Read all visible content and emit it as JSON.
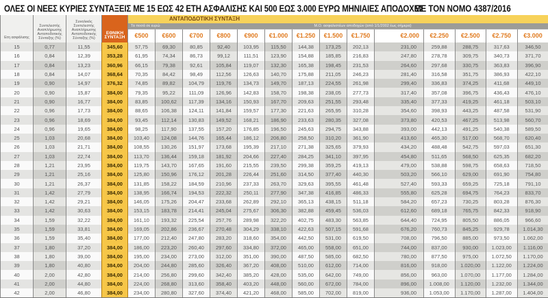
{
  "title": "ΟΛΕΣ ΟΙ ΝΕΕΣ ΚΥΡΙΕΣ ΣΥΝΤΑΞΕΙΣ ΜΕ 15 ΕΩΣ 42 ΕΤΗ ΑΣΦΑΛΙΣΗΣ ΚΑΙ 500 ΕΩΣ 3.000 ΕΥΡΩ ΜΗΝΙΑΙΕΣ ΑΠΟΔΟΧΕΣ",
  "law": "ΜΕ ΤΟΝ ΝΟΜΟ 4387/2016",
  "headers": {
    "years": "Ετη ασφάλισης",
    "coef": "Συντελεστής Αναπλήρωσης Ανταποδοτικής Σύνταξης (%)",
    "total_coef": "Συνολικός Συντελεστής Αναπλήρωσης Ανταποδοτικής Σύνταξης (%)",
    "national": "ΕΘΝΙΚΗ ΣΥΝΤΑΞΗ",
    "contributory": "ΑΝΤΑΠΟΔΟΤΙΚΗ ΣΥΝΤΑΞΗ",
    "amounts_note": "Τα ποσά σε ευρώ",
    "salary_note": "Μ.Ο. ασφαλιστέων αποδοχών (από 1/1/2002 έως σήμερα)",
    "salaries": [
      "€500",
      "€600",
      "€700",
      "€800",
      "€900",
      "€1.000",
      "€1.250",
      "€1.500",
      "€1.750",
      "€2.000",
      "€2.250",
      "€2.500",
      "€2.750",
      "€3.000"
    ]
  },
  "rows": [
    [
      "15",
      "0,77",
      "11,55",
      "345,60",
      "57,75",
      "69,30",
      "80,85",
      "92,40",
      "103,95",
      "115,50",
      "144,38",
      "173,25",
      "202,13",
      "231,00",
      "259,88",
      "288,75",
      "317,63",
      "346,50"
    ],
    [
      "16",
      "0,84",
      "12,39",
      "353,28",
      "61,95",
      "74,34",
      "86,73",
      "99,12",
      "111,51",
      "123,90",
      "154,88",
      "185,85",
      "216,83",
      "247,80",
      "278,78",
      "309,75",
      "340,73",
      "371,70"
    ],
    [
      "17",
      "0,84",
      "13,23",
      "360,96",
      "66,15",
      "79,38",
      "92,61",
      "105,84",
      "119,07",
      "132,30",
      "165,38",
      "198,45",
      "231,53",
      "264,60",
      "297,68",
      "330,75",
      "363,83",
      "396,90"
    ],
    [
      "18",
      "0,84",
      "14,07",
      "368,64",
      "70,35",
      "84,42",
      "98,49",
      "112,56",
      "126,63",
      "140,70",
      "175,88",
      "211,05",
      "246,23",
      "281,40",
      "316,58",
      "351,75",
      "386,93",
      "422,10"
    ],
    [
      "19",
      "0,90",
      "14,97",
      "376,32",
      "74,85",
      "89,82",
      "104,79",
      "119,76",
      "134,73",
      "149,70",
      "187,13",
      "224,55",
      "261,98",
      "299,40",
      "336,83",
      "374,25",
      "411,68",
      "449,10"
    ],
    [
      "20",
      "0,90",
      "15,87",
      "384,00",
      "79,35",
      "95,22",
      "111,09",
      "126,96",
      "142,83",
      "158,70",
      "198,38",
      "238,05",
      "277,73",
      "317,40",
      "357,08",
      "396,75",
      "436,43",
      "476,10"
    ],
    [
      "21",
      "0,90",
      "16,77",
      "384,00",
      "83,85",
      "100,62",
      "117,39",
      "134,16",
      "150,93",
      "167,70",
      "209,63",
      "251,55",
      "293,48",
      "335,40",
      "377,33",
      "419,25",
      "461,18",
      "503,10"
    ],
    [
      "22",
      "0,96",
      "17,73",
      "384,00",
      "88,65",
      "106,38",
      "124,11",
      "141,84",
      "159,57",
      "177,30",
      "221,63",
      "265,95",
      "310,28",
      "354,60",
      "398,93",
      "443,25",
      "487,58",
      "531,90"
    ],
    [
      "23",
      "0,96",
      "18,69",
      "384,00",
      "93,45",
      "112,14",
      "130,83",
      "149,52",
      "168,21",
      "186,90",
      "233,63",
      "280,35",
      "327,08",
      "373,80",
      "420,53",
      "467,25",
      "513,98",
      "560,70"
    ],
    [
      "24",
      "0,96",
      "19,65",
      "384,00",
      "98,25",
      "117,90",
      "137,55",
      "157,20",
      "176,85",
      "196,50",
      "245,63",
      "294,75",
      "343,88",
      "393,00",
      "442,13",
      "491,25",
      "540,38",
      "589,50"
    ],
    [
      "25",
      "1,03",
      "20,68",
      "384,00",
      "103,40",
      "124,08",
      "144,76",
      "165,44",
      "186,12",
      "206,80",
      "258,50",
      "310,20",
      "361,90",
      "413,60",
      "465,30",
      "517,00",
      "568,70",
      "620,40"
    ],
    [
      "26",
      "1,03",
      "21,71",
      "384,00",
      "108,55",
      "130,26",
      "151,97",
      "173,68",
      "195,39",
      "217,10",
      "271,38",
      "325,65",
      "379,93",
      "434,20",
      "488,48",
      "542,75",
      "597,03",
      "651,30"
    ],
    [
      "27",
      "1,03",
      "22,74",
      "384,00",
      "113,70",
      "136,44",
      "159,18",
      "181,92",
      "204,66",
      "227,40",
      "284,25",
      "341,10",
      "397,95",
      "454,80",
      "511,65",
      "568,50",
      "625,35",
      "682,20"
    ],
    [
      "28",
      "1,21",
      "23,95",
      "384,00",
      "119,75",
      "143,70",
      "167,65",
      "191,60",
      "215,55",
      "239,50",
      "299,38",
      "359,25",
      "419,13",
      "479,00",
      "538,88",
      "598,75",
      "658,63",
      "718,50"
    ],
    [
      "29",
      "1,21",
      "25,16",
      "384,00",
      "125,80",
      "150,96",
      "176,12",
      "201,28",
      "226,44",
      "251,60",
      "314,50",
      "377,40",
      "440,30",
      "503,20",
      "566,10",
      "629,00",
      "691,90",
      "754,80"
    ],
    [
      "30",
      "1,21",
      "26,37",
      "384,00",
      "131,85",
      "158,22",
      "184,59",
      "210,96",
      "237,33",
      "263,70",
      "329,63",
      "395,55",
      "461,48",
      "527,40",
      "593,33",
      "659,25",
      "725,18",
      "791,10"
    ],
    [
      "31",
      "1,42",
      "27,79",
      "384,00",
      "138,95",
      "166,74",
      "194,53",
      "222,32",
      "250,11",
      "277,90",
      "347,38",
      "416,85",
      "486,33",
      "555,80",
      "625,28",
      "694,75",
      "764,23",
      "833,70"
    ],
    [
      "32",
      "1,42",
      "29,21",
      "384,00",
      "146,05",
      "175,26",
      "204,47",
      "233,68",
      "262,89",
      "292,10",
      "365,13",
      "438,15",
      "511,18",
      "584,20",
      "657,23",
      "730,25",
      "803,28",
      "876,30"
    ],
    [
      "33",
      "1,42",
      "30,63",
      "384,00",
      "153,15",
      "183,78",
      "214,41",
      "245,04",
      "275,67",
      "306,30",
      "382,88",
      "459,45",
      "536,03",
      "612,60",
      "689,18",
      "765,75",
      "842,33",
      "918,90"
    ],
    [
      "34",
      "1,59",
      "32,22",
      "384,00",
      "161,10",
      "193,32",
      "225,54",
      "257,76",
      "289,98",
      "322,20",
      "402,75",
      "483,30",
      "563,85",
      "644,40",
      "724,95",
      "805,50",
      "886,05",
      "966,60"
    ],
    [
      "35",
      "1,59",
      "33,81",
      "384,00",
      "169,05",
      "202,86",
      "236,67",
      "270,48",
      "304,29",
      "338,10",
      "422,63",
      "507,15",
      "591,68",
      "676,20",
      "760,73",
      "845,25",
      "929,78",
      "1.014,30"
    ],
    [
      "36",
      "1,59",
      "35,40",
      "384,00",
      "177,00",
      "212,40",
      "247,80",
      "283,20",
      "318,60",
      "354,00",
      "442,50",
      "531,00",
      "619,50",
      "708,00",
      "796,50",
      "885,00",
      "973,50",
      "1.062,00"
    ],
    [
      "37",
      "1,80",
      "37,20",
      "384,00",
      "186,00",
      "223,20",
      "260,40",
      "297,60",
      "334,80",
      "372,00",
      "465,00",
      "558,00",
      "651,00",
      "744,00",
      "837,00",
      "930,00",
      "1.023,00",
      "1.116,00"
    ],
    [
      "38",
      "1,80",
      "39,00",
      "384,00",
      "195,00",
      "234,00",
      "273,00",
      "312,00",
      "351,00",
      "390,00",
      "487,50",
      "585,00",
      "682,50",
      "780,00",
      "877,50",
      "975,00",
      "1.072,50",
      "1.170,00"
    ],
    [
      "39",
      "1,80",
      "40,80",
      "384,00",
      "204,00",
      "244,80",
      "285,60",
      "326,40",
      "367,20",
      "408,00",
      "510,00",
      "612,00",
      "714,00",
      "816,00",
      "918,00",
      "1.020,00",
      "1.122,00",
      "1.224,00"
    ],
    [
      "40",
      "2,00",
      "42,80",
      "384,00",
      "214,00",
      "256,80",
      "299,60",
      "342,40",
      "385,20",
      "428,00",
      "535,00",
      "642,00",
      "749,00",
      "856,00",
      "963,00",
      "1.070,00",
      "1.177,00",
      "1.284,00"
    ],
    [
      "41",
      "2,00",
      "44,80",
      "384,00",
      "224,00",
      "268,80",
      "313,60",
      "358,40",
      "403,20",
      "448,00",
      "560,00",
      "672,00",
      "784,00",
      "896,00",
      "1.008,00",
      "1.120,00",
      "1.232,00",
      "1.344,00"
    ],
    [
      "42",
      "2,00",
      "46,80",
      "384,00",
      "234,00",
      "280,80",
      "327,60",
      "374,40",
      "421,20",
      "468,00",
      "585,00",
      "702,00",
      "819,00",
      "936,00",
      "1.053,00",
      "1.170,00",
      "1.287,00",
      "1.404,00"
    ]
  ],
  "colors": {
    "national_header": "#d9641c",
    "national_cells": "#f6c648",
    "contributory_band": "#f7d25a",
    "salary_header_text": "#e07b20"
  }
}
